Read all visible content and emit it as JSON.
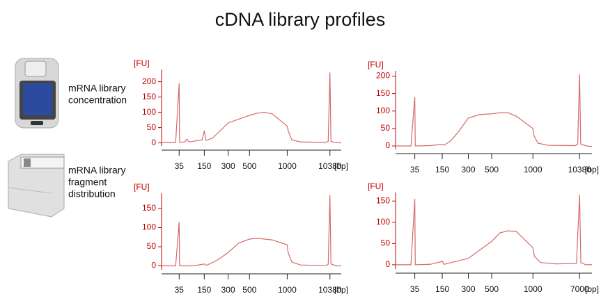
{
  "title": "cDNA library profiles",
  "devices": [
    {
      "label": [
        "mRNA library",
        "concentration"
      ]
    },
    {
      "label": [
        "mRNA library",
        "fragment",
        "distribution"
      ]
    }
  ],
  "chart_data": [
    {
      "type": "line",
      "ylabel": "[FU]",
      "xlabel": "[bp]",
      "color": "#d46a6a",
      "axis_color": "#c00000",
      "xlim": [
        25,
        15000
      ],
      "xticks": [
        35,
        150,
        300,
        500,
        1000,
        10380
      ],
      "ylim": [
        -10,
        240
      ],
      "yticks": [
        0,
        50,
        100,
        150,
        200
      ],
      "x": [
        25,
        33,
        35,
        37,
        60,
        70,
        80,
        140,
        150,
        160,
        200,
        250,
        300,
        400,
        500,
        600,
        700,
        800,
        1000,
        1200,
        2000,
        4000,
        9500,
        10000,
        10380,
        10800,
        13000,
        15000
      ],
      "series": [
        {
          "values": [
            2,
            2,
            195,
            2,
            3,
            12,
            3,
            10,
            40,
            8,
            15,
            40,
            65,
            78,
            90,
            97,
            100,
            95,
            55,
            40,
            10,
            3,
            2,
            5,
            230,
            5,
            1,
            0
          ]
        }
      ]
    },
    {
      "type": "line",
      "ylabel": "[FU]",
      "xlabel": "[bp]",
      "color": "#d46a6a",
      "axis_color": "#c00000",
      "xlim": [
        25,
        15000
      ],
      "xticks": [
        35,
        150,
        300,
        500,
        1000,
        10380
      ],
      "ylim": [
        -10,
        215
      ],
      "yticks": [
        0,
        50,
        100,
        150,
        200
      ],
      "x": [
        25,
        33,
        35,
        37,
        100,
        150,
        160,
        200,
        250,
        300,
        400,
        500,
        600,
        700,
        800,
        1000,
        1200,
        2000,
        4000,
        9500,
        10000,
        10380,
        10800,
        13000,
        15000
      ],
      "series": [
        {
          "values": [
            0,
            0,
            140,
            0,
            1,
            5,
            2,
            15,
            45,
            80,
            90,
            92,
            95,
            95,
            85,
            50,
            30,
            8,
            2,
            1,
            4,
            205,
            5,
            0,
            -2
          ]
        }
      ]
    },
    {
      "type": "line",
      "ylabel": "[FU]",
      "xlabel": "[bp]",
      "color": "#d46a6a",
      "axis_color": "#c00000",
      "xlim": [
        25,
        15000
      ],
      "xticks": [
        35,
        150,
        300,
        500,
        1000,
        10380
      ],
      "ylim": [
        -10,
        190
      ],
      "yticks": [
        0,
        50,
        100,
        150
      ],
      "x": [
        25,
        33,
        35,
        37,
        100,
        150,
        160,
        200,
        250,
        300,
        400,
        500,
        600,
        700,
        800,
        1000,
        1200,
        2000,
        4000,
        9500,
        10000,
        10380,
        10800,
        13000,
        15000
      ],
      "series": [
        {
          "values": [
            0,
            0,
            115,
            0,
            0,
            5,
            1,
            8,
            20,
            35,
            60,
            70,
            72,
            70,
            68,
            55,
            35,
            10,
            2,
            1,
            4,
            185,
            5,
            0,
            0
          ]
        }
      ]
    },
    {
      "type": "line",
      "ylabel": "[FU]",
      "xlabel": "[bp]",
      "color": "#d46a6a",
      "axis_color": "#c00000",
      "xlim": [
        25,
        11000
      ],
      "xticks": [
        35,
        150,
        300,
        500,
        1000,
        7000
      ],
      "ylim": [
        -10,
        170
      ],
      "yticks": [
        0,
        50,
        100,
        150
      ],
      "x": [
        25,
        33,
        35,
        37,
        100,
        150,
        160,
        200,
        300,
        400,
        500,
        600,
        700,
        800,
        1000,
        1200,
        2000,
        4000,
        6600,
        7000,
        7400,
        9000,
        11000
      ],
      "series": [
        {
          "values": [
            0,
            0,
            155,
            0,
            1,
            8,
            1,
            5,
            15,
            35,
            55,
            75,
            80,
            78,
            40,
            20,
            5,
            2,
            3,
            165,
            5,
            0,
            0
          ]
        }
      ]
    }
  ]
}
